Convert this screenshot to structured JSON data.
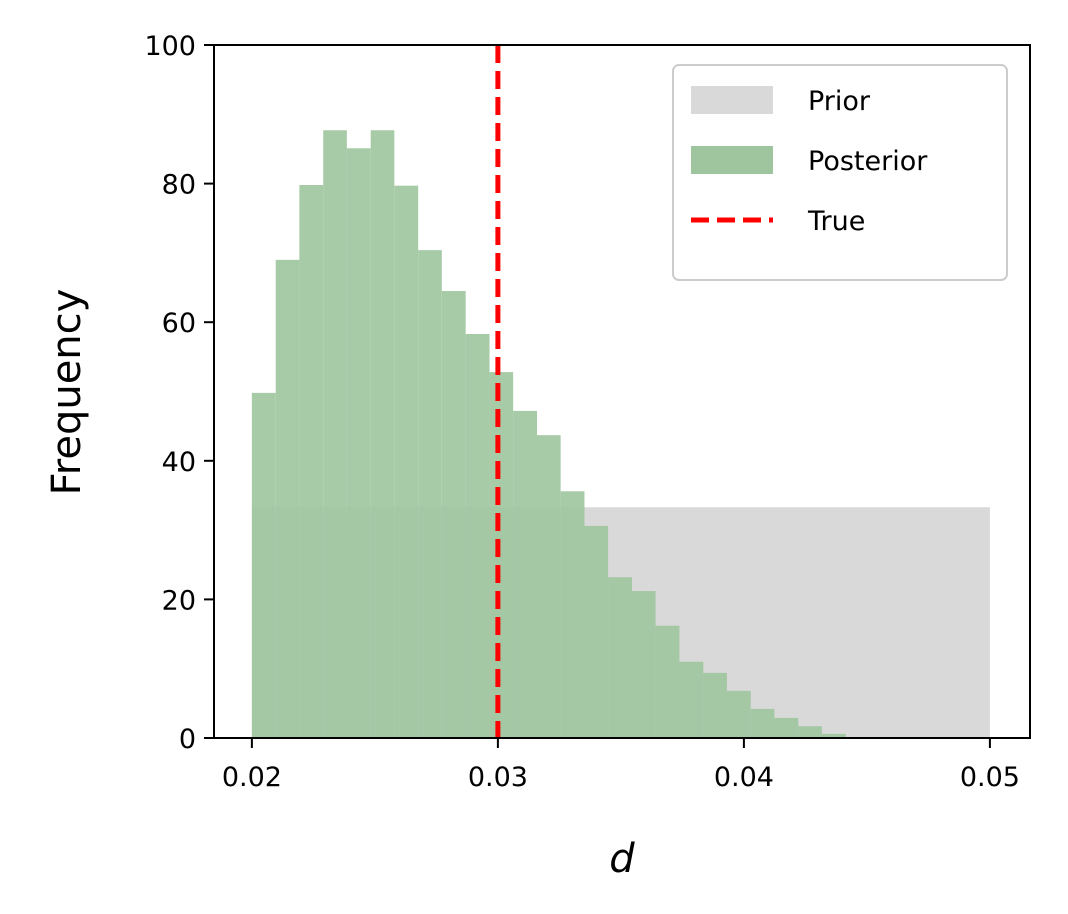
{
  "chart_data": {
    "type": "histogram",
    "xlabel": "d",
    "ylabel": "Frequency",
    "xlim": [
      0.01846,
      0.05163
    ],
    "ylim": [
      0,
      100
    ],
    "xticks": [
      0.02,
      0.03,
      0.04,
      0.05
    ],
    "yticks": [
      0,
      20,
      40,
      60,
      80,
      100
    ],
    "grid": false,
    "legend": "upper right",
    "series": [
      {
        "name": "Prior",
        "color": "#d9d9d9",
        "bins": [
          0.02,
          0.05
        ],
        "values": [
          33.3
        ]
      },
      {
        "name": "Posterior",
        "color": "#9fc59f",
        "bins": [
          0.02,
          0.02097,
          0.02193,
          0.0229,
          0.02386,
          0.02483,
          0.02579,
          0.02676,
          0.02772,
          0.02869,
          0.02966,
          0.03062,
          0.03159,
          0.03255,
          0.03352,
          0.03448,
          0.03545,
          0.03641,
          0.03738,
          0.03835,
          0.03931,
          0.04028,
          0.04124,
          0.04221,
          0.04317,
          0.04414
        ],
        "values": [
          49.8,
          69,
          79.8,
          87.7,
          85.1,
          87.7,
          79.7,
          70.4,
          64.5,
          58.3,
          52.8,
          47.2,
          43.7,
          35.6,
          30.6,
          23.2,
          21.2,
          16.2,
          11,
          9.4,
          6.8,
          4.2,
          2.9,
          1.7,
          0.6
        ]
      }
    ],
    "vlines": [
      {
        "name": "True",
        "x": 0.03,
        "color": "#ff0000",
        "style": "dashed"
      }
    ]
  }
}
